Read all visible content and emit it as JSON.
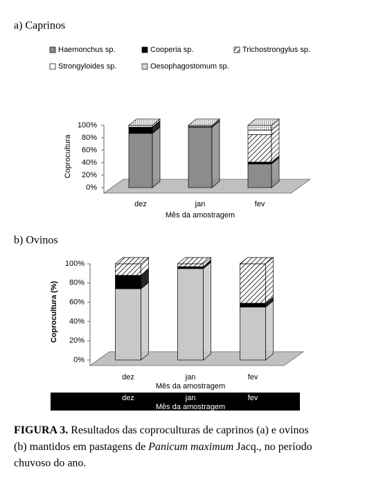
{
  "chart_data": [
    {
      "type": "bar",
      "stacked": true,
      "three_d": true,
      "title": "a) Caprinos",
      "y_label": "Coprocultura",
      "x_label": "Mês da amostragem",
      "legend": "top",
      "categories": [
        "dez",
        "jan",
        "fev"
      ],
      "ylim": [
        0,
        100
      ],
      "yticks": [
        {
          "value": 0,
          "label": "0%"
        },
        {
          "value": 20,
          "label": "20%"
        },
        {
          "value": 40,
          "label": "40%"
        },
        {
          "value": 60,
          "label": "60%"
        },
        {
          "value": 80,
          "label": "80%"
        },
        {
          "value": 100,
          "label": "100%"
        }
      ],
      "series": [
        {
          "name": "Haemonchus sp.",
          "color": "#8c8c8c",
          "values": [
            87,
            97,
            38
          ]
        },
        {
          "name": "Cooperia sp.",
          "color": "#000000",
          "values": [
            10,
            1,
            3
          ]
        },
        {
          "name": "Trichostrongylus sp.",
          "color": "#ffffff",
          "pattern": "diagonal",
          "values": [
            0,
            0,
            44
          ]
        },
        {
          "name": "Strongyloides sp.",
          "color": "#ffffff",
          "values": [
            0,
            0,
            7
          ]
        },
        {
          "name": "Oesophagostomum sp.",
          "color": "#ffffff",
          "pattern": "dots",
          "values": [
            3,
            2,
            8
          ]
        }
      ]
    },
    {
      "type": "bar",
      "stacked": true,
      "three_d": true,
      "title": "b) Ovinos",
      "y_label": "Coprocultura (%)",
      "x_label": "Mês da amostragem",
      "categories": [
        "dez",
        "jan",
        "fev"
      ],
      "ylim": [
        0,
        100
      ],
      "yticks": [
        {
          "value": 0,
          "label": "0%"
        },
        {
          "value": 20,
          "label": "20%"
        },
        {
          "value": 40,
          "label": "40%"
        },
        {
          "value": 60,
          "label": "60%"
        },
        {
          "value": 80,
          "label": "80%"
        },
        {
          "value": 100,
          "label": "100%"
        }
      ],
      "series": [
        {
          "color": "#c8c8c8",
          "values": [
            74,
            95,
            55
          ]
        },
        {
          "color": "#000000",
          "values": [
            14,
            2,
            4
          ]
        },
        {
          "color": "#ffffff",
          "pattern": "diagonal",
          "values": [
            12,
            3,
            41
          ]
        }
      ]
    }
  ],
  "caption": {
    "label": "FIGURA 3.",
    "line1": "Resultados das coproculturas de caprinos (a) e ovinos",
    "line2": "(b) mantidos em pastagens de",
    "species": "Panicum maximum",
    "line2_end": "Jacq., no período",
    "line3": "chuvoso do ano."
  }
}
